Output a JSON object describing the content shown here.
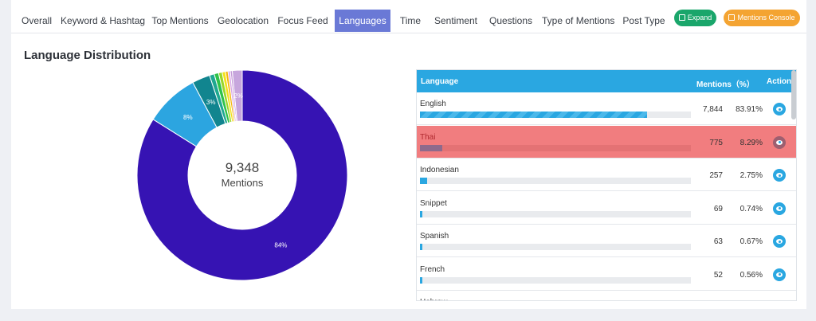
{
  "tabs": [
    "Overall",
    "Keyword & Hashtag",
    "Top Mentions",
    "Geolocation",
    "Focus Feed",
    "Languages",
    "Time",
    "Sentiment",
    "Questions",
    "Type of Mentions",
    "Post Type"
  ],
  "active_tab": "Languages",
  "buttons": {
    "expand": "Expand",
    "console": "Mentions Console"
  },
  "section_title": "Language Distribution",
  "donut": {
    "total": "9,348",
    "label": "Mentions"
  },
  "table": {
    "headers": {
      "language": "Language",
      "mentions": "Mentions（%）",
      "action": "Action"
    },
    "rows": [
      {
        "language": "English",
        "count": "7,844",
        "pct": "83.91%",
        "share": 0.8391
      },
      {
        "language": "Thai",
        "count": "775",
        "pct": "8.29%",
        "share": 0.0829
      },
      {
        "language": "Indonesian",
        "count": "257",
        "pct": "2.75%",
        "share": 0.0275
      },
      {
        "language": "Snippet",
        "count": "69",
        "pct": "0.74%",
        "share": 0.0074
      },
      {
        "language": "Spanish",
        "count": "63",
        "pct": "0.67%",
        "share": 0.0067
      },
      {
        "language": "French",
        "count": "52",
        "pct": "0.56%",
        "share": 0.0056
      },
      {
        "language": "Hebrew",
        "count": "",
        "pct": "",
        "share": 0.0
      }
    ]
  },
  "chart_data": {
    "type": "pie",
    "values": [
      83.91,
      8.29,
      2.75,
      0.74,
      0.67,
      0.56,
      0.5,
      0.4,
      0.35,
      0.3,
      1.53
    ],
    "labels": [
      "84%",
      "8%",
      "3%",
      "",
      "",
      "",
      "",
      "",
      "",
      "",
      "2%"
    ],
    "colors": [
      "#3613b3",
      "#2ca5e0",
      "#11858f",
      "#1fa891",
      "#2fc24a",
      "#9ad62a",
      "#f3e21a",
      "#f5b70f",
      "#d9a8e6",
      "#c49ad8",
      "#c7a6dd"
    ]
  },
  "colors": {
    "accent": "#2aa7e1",
    "tab_active": "#6a79d6",
    "expand": "#1aa66b",
    "console": "#f4a432"
  }
}
